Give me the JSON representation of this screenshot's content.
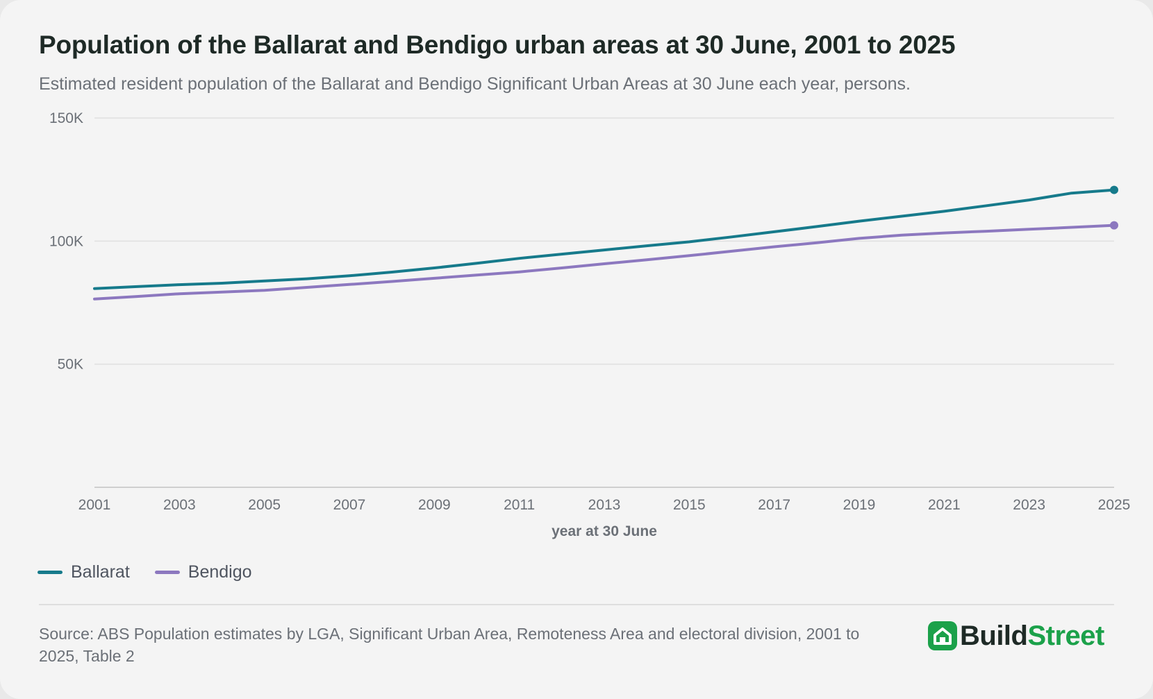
{
  "title": "Population of the Ballarat and Bendigo urban areas at 30 June, 2001 to 2025",
  "subtitle": "Estimated resident population of the Ballarat and Bendigo Significant Urban Areas at 30 June each year, persons.",
  "source": "Source: ABS Population estimates by LGA, Significant Urban Area, Remoteness Area and electoral division, 2001 to 2025, Table 2",
  "brand": {
    "part1": "Build",
    "part2": "Street",
    "icon": "house-icon"
  },
  "colors": {
    "ballarat": "#167a8b",
    "bendigo": "#8c78bf",
    "brand": "#1ba14a"
  },
  "chart_data": {
    "type": "line",
    "title": "Population of the Ballarat and Bendigo urban areas at 30 June, 2001 to 2025",
    "xlabel": "year at 30 June",
    "ylabel": "",
    "ylim": [
      0,
      150000
    ],
    "xlim": [
      2001,
      2025
    ],
    "y_ticks": [
      50000,
      100000,
      150000
    ],
    "y_tick_labels": [
      "50K",
      "100K",
      "150K"
    ],
    "x_ticks": [
      "2001",
      "2003",
      "2005",
      "2007",
      "2009",
      "2011",
      "2013",
      "2015",
      "2017",
      "2019",
      "2021",
      "2023",
      "2025"
    ],
    "grid": true,
    "legend": "bottom-left",
    "x": [
      2001,
      2002,
      2003,
      2004,
      2005,
      2006,
      2007,
      2008,
      2009,
      2010,
      2011,
      2012,
      2013,
      2014,
      2015,
      2016,
      2017,
      2018,
      2019,
      2020,
      2021,
      2022,
      2023,
      2024,
      2025
    ],
    "series": [
      {
        "name": "Ballarat",
        "color": "#167a8b",
        "values": [
          80700,
          81500,
          82300,
          82900,
          83800,
          84700,
          85900,
          87400,
          89100,
          91000,
          93000,
          94700,
          96400,
          98100,
          99700,
          101700,
          103800,
          105900,
          108100,
          110100,
          112100,
          114400,
          116700,
          119500,
          120800
        ]
      },
      {
        "name": "Bendigo",
        "color": "#8c78bf",
        "values": [
          76500,
          77500,
          78600,
          79300,
          80000,
          81200,
          82400,
          83600,
          84900,
          86200,
          87500,
          89100,
          90800,
          92400,
          94100,
          95900,
          97700,
          99300,
          101100,
          102400,
          103300,
          104000,
          104800,
          105600,
          106400
        ]
      }
    ]
  }
}
